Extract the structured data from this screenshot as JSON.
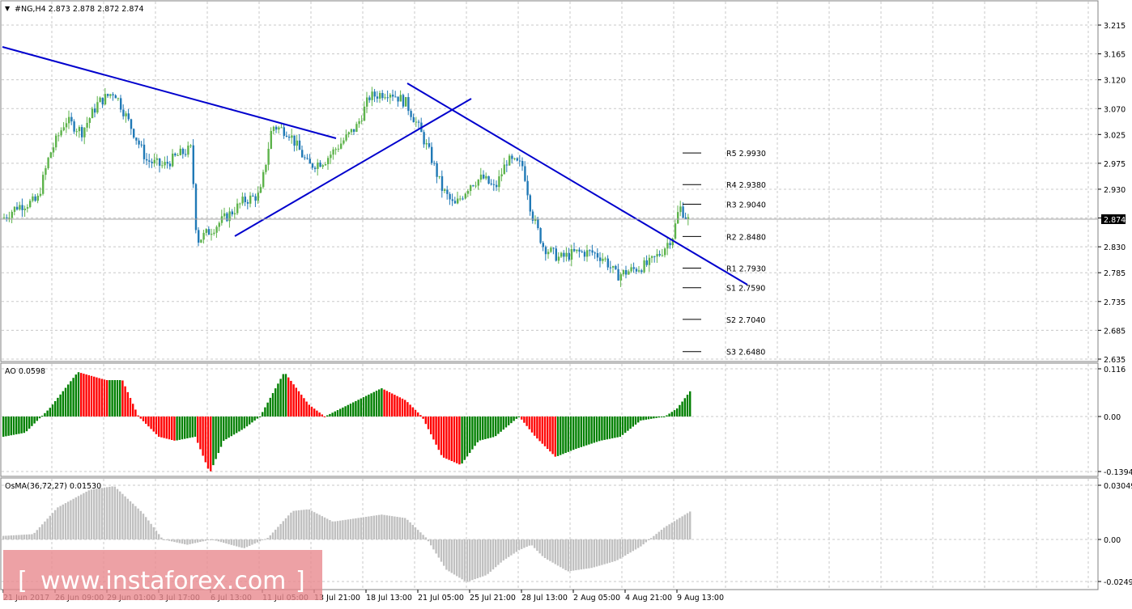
{
  "main": {
    "symbol_header": "#NG,H4  2.873 2.878 2.872 2.874",
    "current_price": "2.874",
    "colors": {
      "up": "#5db34b",
      "down": "#2079b6",
      "trend": "#0000cd",
      "bg": "#ffffff",
      "grid": "#c8c8c8",
      "price_tag": "#000000"
    },
    "price_axis": [
      "3.215",
      "3.165",
      "3.120",
      "3.070",
      "3.025",
      "2.975",
      "2.930",
      "2.880",
      "2.830",
      "2.785",
      "2.735",
      "2.685",
      "2.635"
    ],
    "pivots": [
      {
        "label": "R5 2.9930",
        "value": 2.993
      },
      {
        "label": "R4 2.9380",
        "value": 2.938
      },
      {
        "label": "R3 2.9040",
        "value": 2.904
      },
      {
        "label": "R2 2.8480",
        "value": 2.848
      },
      {
        "label": "R1 2.7930",
        "value": 2.793
      },
      {
        "label": "S1 2.7590",
        "value": 2.759
      },
      {
        "label": "S2 2.7040",
        "value": 2.704
      },
      {
        "label": "S3 2.6480",
        "value": 2.648
      }
    ]
  },
  "ao_panel": {
    "title": "AO 0.0598",
    "axis": [
      "0.116",
      "0.00",
      "-0.1394"
    ],
    "colors": {
      "up": "#008000",
      "down": "#ff0000"
    }
  },
  "osma_panel": {
    "title": "OsMA(36,72,27) 0.01530",
    "axis": [
      "0.03049",
      "0.00",
      "-0.02492"
    ],
    "colors": {
      "bar": "#c0c0c0"
    }
  },
  "time_axis": [
    "21 Jun 2017",
    "26 Jun 09:00",
    "29 Jun 01:00",
    "3 Jul 17:00",
    "6 Jul 13:00",
    "11 Jul 05:00",
    "13 Jul 21:00",
    "18 Jul 13:00",
    "21 Jul 05:00",
    "25 Jul 21:00",
    "28 Jul 13:00",
    "2 Aug 05:00",
    "4 Aug 21:00",
    "9 Aug 13:00"
  ],
  "watermark": {
    "text": "www.instaforex.com",
    "left_bracket": "[",
    "right_bracket": "]"
  }
}
